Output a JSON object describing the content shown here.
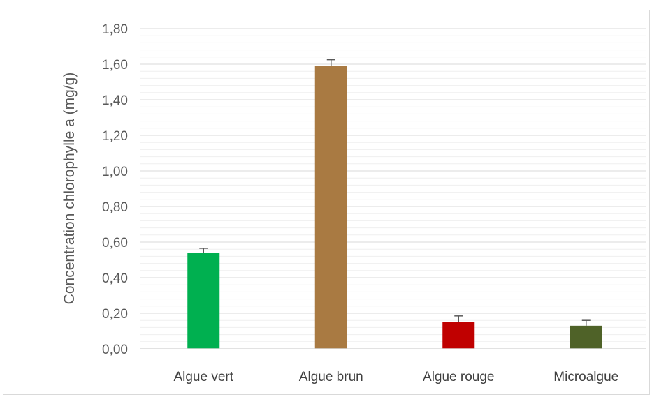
{
  "chart_data": {
    "type": "bar",
    "title": "",
    "xlabel": "",
    "ylabel": "Concentration chlorophylle a (mg/g)",
    "categories": [
      "Algue vert",
      "Algue brun",
      "Algue rouge",
      "Microalgue"
    ],
    "values": [
      0.54,
      1.59,
      0.15,
      0.13
    ],
    "errors": [
      0.025,
      0.035,
      0.035,
      0.03
    ],
    "colors": [
      "#00b050",
      "#a97a42",
      "#c00000",
      "#4f6228"
    ],
    "error_bar_color": "#595959",
    "ylim": [
      0,
      1.8
    ],
    "yticks": [
      "0,00",
      "0,20",
      "0,40",
      "0,60",
      "0,80",
      "1,00",
      "1,20",
      "1,40",
      "1,60",
      "1,80"
    ],
    "ytick_values": [
      0,
      0.2,
      0.4,
      0.6,
      0.8,
      1.0,
      1.2,
      1.4,
      1.6,
      1.8
    ],
    "minor_grid_step": 0.04,
    "grid": true,
    "legend": "none"
  }
}
